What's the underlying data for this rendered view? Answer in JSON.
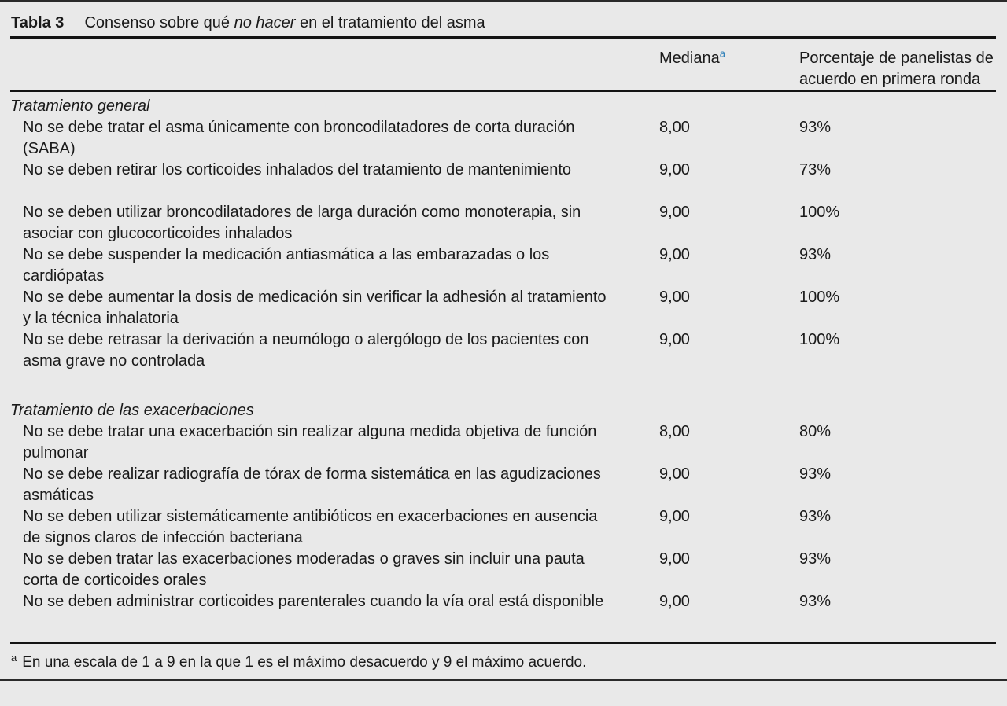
{
  "page": {
    "background_color": "#e9e9e9",
    "text_color": "#1a1a1a",
    "accent_blue": "#2d7fb8"
  },
  "table": {
    "label": "Tabla 3",
    "caption_prefix": "Consenso sobre qué ",
    "caption_italic": "no hacer",
    "caption_suffix": " en el tratamiento del asma",
    "columns": {
      "mediana_label": "Mediana",
      "mediana_superscript": "a",
      "percent_label": "Porcentaje de panelistas de acuerdo en primera ronda"
    },
    "sections": [
      {
        "title": "Tratamiento general",
        "rows": [
          {
            "text": "No se debe tratar el asma únicamente con broncodilatadores de corta duración (SABA)",
            "mediana": "8,00",
            "percent": "93%"
          },
          {
            "text": "No se deben retirar los corticoides inhalados del tratamiento de mantenimiento",
            "mediana": "9,00",
            "percent": "73%"
          },
          {
            "text": "No se deben utilizar broncodilatadores de larga duración como monoterapia, sin asociar con glucocorticoides inhalados",
            "mediana": "9,00",
            "percent": "100%"
          },
          {
            "text": "No se debe suspender la medicación antiasmática a las embarazadas o los cardiópatas",
            "mediana": "9,00",
            "percent": "93%"
          },
          {
            "text": "No se debe aumentar la dosis de medicación sin verificar la adhesión al tratamiento y la técnica inhalatoria",
            "mediana": "9,00",
            "percent": "100%"
          },
          {
            "text": "No se debe retrasar la derivación a neumólogo o alergólogo de los pacientes con asma grave no controlada",
            "mediana": "9,00",
            "percent": "100%"
          }
        ]
      },
      {
        "title": "Tratamiento de las exacerbaciones",
        "rows": [
          {
            "text": "No se debe tratar una exacerbación sin realizar alguna medida objetiva de función pulmonar",
            "mediana": "8,00",
            "percent": "80%"
          },
          {
            "text": "No se debe realizar radiografía de tórax de forma sistemática en las agudizaciones asmáticas",
            "mediana": "9,00",
            "percent": "93%"
          },
          {
            "text": "No se deben utilizar sistemáticamente antibióticos en exacerbaciones en ausencia de signos claros de infección bacteriana",
            "mediana": "9,00",
            "percent": "93%"
          },
          {
            "text": "No se deben tratar las exacerbaciones moderadas o graves sin incluir una pauta corta de corticoides orales",
            "mediana": "9,00",
            "percent": "93%"
          },
          {
            "text": "No se deben administrar corticoides parenterales cuando la vía oral está disponible",
            "mediana": "9,00",
            "percent": "93%"
          }
        ]
      }
    ],
    "footnote": {
      "marker": "a",
      "text": "En una escala de 1 a 9 en la que 1 es el máximo desacuerdo y 9 el máximo acuerdo."
    }
  }
}
